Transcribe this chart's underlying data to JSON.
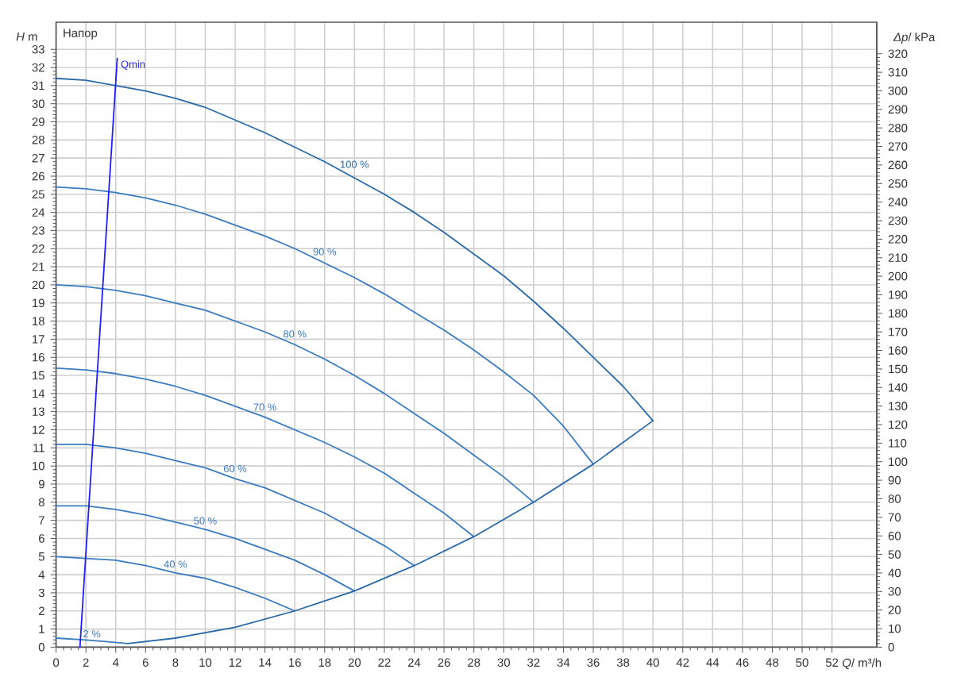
{
  "chart_data": {
    "type": "line",
    "xlabel": "*Q*/ m³/h",
    "ylabel": "*H* m",
    "y2label": "*Δp*/ kPa",
    "annotations": [
      "Напор"
    ],
    "xlim": [
      0,
      55
    ],
    "xticks": [
      0,
      2,
      4,
      6,
      8,
      10,
      12,
      14,
      16,
      18,
      20,
      22,
      24,
      26,
      28,
      30,
      32,
      34,
      36,
      38,
      40,
      42,
      44,
      46,
      48,
      50,
      52
    ],
    "ylim": [
      0,
      34.5
    ],
    "yticks": [
      0,
      1,
      2,
      3,
      4,
      5,
      6,
      7,
      8,
      9,
      10,
      11,
      12,
      13,
      14,
      15,
      16,
      17,
      18,
      19,
      20,
      21,
      22,
      23,
      24,
      25,
      26,
      27,
      28,
      29,
      30,
      31,
      32,
      33
    ],
    "y2lim": [
      0,
      337
    ],
    "y2ticks": [
      0,
      10,
      20,
      30,
      40,
      50,
      60,
      70,
      80,
      90,
      100,
      110,
      120,
      130,
      140,
      150,
      160,
      170,
      180,
      190,
      200,
      210,
      220,
      230,
      240,
      250,
      260,
      270,
      280,
      290,
      300,
      310,
      320
    ],
    "grid": true,
    "series": [
      {
        "name": "100 %",
        "color": "#2a6aa8",
        "x": [
          0,
          2,
          4,
          6,
          8,
          10,
          12,
          14,
          16,
          18,
          20,
          22,
          24,
          26,
          28,
          30,
          32,
          34,
          36,
          38,
          40
        ],
        "values": [
          31.4,
          31.3,
          31.0,
          30.7,
          30.3,
          29.8,
          29.1,
          28.4,
          27.6,
          26.8,
          25.9,
          25.0,
          24.0,
          22.9,
          21.7,
          20.5,
          19.1,
          17.6,
          16.0,
          14.4,
          12.5
        ]
      },
      {
        "name": "90 %",
        "color": "#3b7bbf",
        "x": [
          0,
          2,
          4,
          6,
          8,
          10,
          12,
          14,
          16,
          18,
          20,
          22,
          24,
          26,
          28,
          30,
          32,
          34,
          36
        ],
        "values": [
          25.4,
          25.3,
          25.1,
          24.8,
          24.4,
          23.9,
          23.3,
          22.7,
          22.0,
          21.2,
          20.4,
          19.5,
          18.5,
          17.5,
          16.4,
          15.2,
          13.9,
          12.2,
          10.1
        ]
      },
      {
        "name": "80 %",
        "color": "#3b7bbf",
        "x": [
          0,
          2,
          4,
          6,
          8,
          10,
          12,
          14,
          16,
          18,
          20,
          22,
          24,
          26,
          28,
          30,
          32
        ],
        "values": [
          20.0,
          19.9,
          19.7,
          19.4,
          19.0,
          18.6,
          18.0,
          17.4,
          16.7,
          15.9,
          15.0,
          14.0,
          12.9,
          11.8,
          10.6,
          9.4,
          8.0
        ]
      },
      {
        "name": "70 %",
        "color": "#3b7bbf",
        "x": [
          0,
          2,
          4,
          6,
          8,
          10,
          12,
          14,
          16,
          18,
          20,
          22,
          24,
          26,
          28
        ],
        "values": [
          15.4,
          15.3,
          15.1,
          14.8,
          14.4,
          13.9,
          13.3,
          12.7,
          12.0,
          11.3,
          10.5,
          9.6,
          8.5,
          7.4,
          6.1
        ]
      },
      {
        "name": "60 %",
        "color": "#3b7bbf",
        "x": [
          0,
          2,
          4,
          6,
          8,
          10,
          12,
          14,
          16,
          18,
          20,
          22,
          24
        ],
        "values": [
          11.2,
          11.2,
          11.0,
          10.7,
          10.3,
          9.9,
          9.3,
          8.8,
          8.1,
          7.4,
          6.5,
          5.6,
          4.5
        ]
      },
      {
        "name": "50 %",
        "color": "#3b7bbf",
        "x": [
          0,
          2,
          4,
          6,
          8,
          10,
          12,
          14,
          16,
          18,
          20
        ],
        "values": [
          7.8,
          7.8,
          7.6,
          7.3,
          6.9,
          6.5,
          6.0,
          5.4,
          4.8,
          4.0,
          3.1
        ]
      },
      {
        "name": "40 %",
        "color": "#3b7bbf",
        "x": [
          0,
          2,
          4,
          6,
          8,
          10,
          12,
          14,
          16
        ],
        "values": [
          5.0,
          4.9,
          4.8,
          4.5,
          4.1,
          3.8,
          3.3,
          2.7,
          2.0
        ]
      },
      {
        "name": "2 %",
        "color": "#3b7bbf",
        "x": [
          0,
          2,
          3.5,
          4.8
        ],
        "values": [
          0.5,
          0.4,
          0.3,
          0.2
        ]
      },
      {
        "color": "#2a6aa8",
        "x": [
          4.8,
          8,
          12,
          16,
          20,
          24,
          28,
          32,
          36,
          40
        ],
        "values": [
          0.2,
          0.5,
          1.1,
          2.0,
          3.1,
          4.5,
          6.1,
          8.0,
          10.1,
          12.5
        ]
      },
      {
        "name": "Qmin",
        "color": "#1f1fff",
        "x": [
          1.6,
          4.1
        ],
        "values": [
          0,
          32.5
        ]
      }
    ]
  }
}
